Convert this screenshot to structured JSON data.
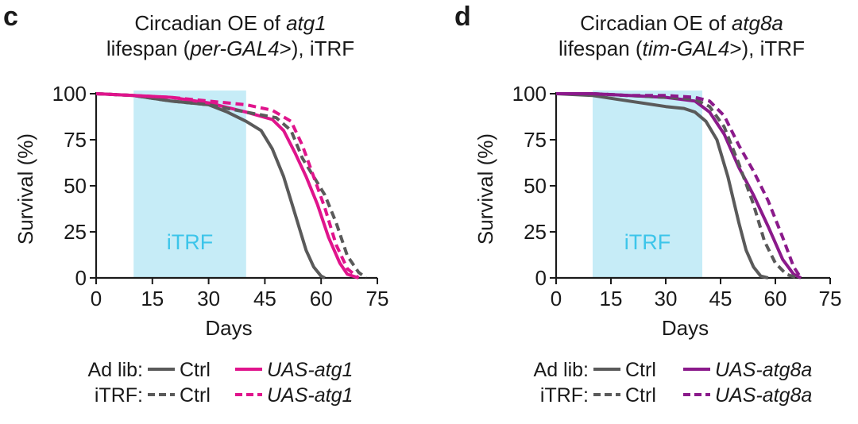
{
  "chart_data": [
    {
      "panel": "c",
      "type": "line",
      "title_line1_prefix": "Circadian OE of ",
      "title_line1_italic": "atg1",
      "title_line2_prefix": "lifespan (",
      "title_line2_italic": "per-GAL4",
      "title_line2_suffix": ">), iTRF",
      "xlabel": "Days",
      "ylabel": "Survival (%)",
      "xlim": [
        0,
        75
      ],
      "ylim": [
        0,
        100
      ],
      "xticks": [
        0,
        15,
        30,
        45,
        60,
        75
      ],
      "yticks": [
        0,
        25,
        50,
        75,
        100
      ],
      "shade": {
        "x0": 10,
        "x1": 40,
        "label": "iTRF"
      },
      "legend": {
        "row1_label": "Ad lib:",
        "row2_label": "iTRF:",
        "ctrl_label": "Ctrl",
        "uas_label": "UAS-atg1"
      },
      "series": [
        {
          "name": "Ad lib Ctrl",
          "color": "#5a5a5a",
          "dashed": false,
          "x": [
            0,
            10,
            20,
            30,
            35,
            40,
            44,
            47,
            50,
            53,
            56,
            58,
            60,
            61
          ],
          "y": [
            100,
            99,
            96,
            94,
            90,
            85,
            80,
            70,
            55,
            35,
            15,
            6,
            1,
            0
          ]
        },
        {
          "name": "Ad lib UAS-atg1",
          "color": "#e0148c",
          "dashed": false,
          "x": [
            0,
            10,
            20,
            30,
            40,
            47,
            50,
            53,
            56,
            59,
            62,
            65,
            67,
            70
          ],
          "y": [
            100,
            99,
            98,
            95,
            90,
            86,
            80,
            68,
            55,
            40,
            22,
            8,
            2,
            0
          ]
        },
        {
          "name": "iTRF Ctrl",
          "color": "#5a5a5a",
          "dashed": true,
          "x": [
            0,
            10,
            20,
            30,
            40,
            48,
            52,
            55,
            58,
            61,
            64,
            67,
            70,
            72
          ],
          "y": [
            100,
            99,
            96,
            94,
            90,
            87,
            80,
            65,
            55,
            45,
            30,
            12,
            3,
            0
          ]
        },
        {
          "name": "iTRF UAS-atg1",
          "color": "#e0148c",
          "dashed": true,
          "x": [
            0,
            10,
            20,
            30,
            40,
            47,
            52,
            55,
            58,
            61,
            64,
            67,
            70
          ],
          "y": [
            100,
            99,
            98,
            96,
            94,
            91,
            85,
            72,
            55,
            38,
            18,
            5,
            0
          ]
        }
      ]
    },
    {
      "panel": "d",
      "type": "line",
      "title_line1_prefix": "Circadian OE of ",
      "title_line1_italic": "atg8a",
      "title_line2_prefix": "lifespan (",
      "title_line2_italic": "tim-GAL4",
      "title_line2_suffix": ">), iTRF",
      "xlabel": "Days",
      "ylabel": "Survival (%)",
      "xlim": [
        0,
        75
      ],
      "ylim": [
        0,
        100
      ],
      "xticks": [
        0,
        15,
        30,
        45,
        60,
        75
      ],
      "yticks": [
        0,
        25,
        50,
        75,
        100
      ],
      "shade": {
        "x0": 10,
        "x1": 40,
        "label": "iTRF"
      },
      "legend": {
        "row1_label": "Ad lib:",
        "row2_label": "iTRF:",
        "ctrl_label": "Ctrl",
        "uas_label": "UAS-atg8a"
      },
      "series": [
        {
          "name": "Ad lib Ctrl",
          "color": "#5a5a5a",
          "dashed": false,
          "x": [
            0,
            10,
            20,
            30,
            35,
            38,
            41,
            44,
            47,
            50,
            52,
            54,
            56,
            58
          ],
          "y": [
            100,
            99,
            96,
            93,
            92,
            90,
            85,
            75,
            55,
            30,
            15,
            6,
            1,
            0
          ]
        },
        {
          "name": "Ad lib UAS-atg8a",
          "color": "#8b1a8b",
          "dashed": false,
          "x": [
            0,
            10,
            20,
            30,
            38,
            42,
            46,
            50,
            54,
            58,
            62,
            65,
            67
          ],
          "y": [
            100,
            100,
            99,
            98,
            96,
            90,
            78,
            60,
            45,
            28,
            10,
            2,
            0
          ]
        },
        {
          "name": "iTRF Ctrl",
          "color": "#5a5a5a",
          "dashed": true,
          "x": [
            0,
            10,
            20,
            30,
            38,
            42,
            46,
            50,
            54,
            57,
            60,
            63,
            66
          ],
          "y": [
            100,
            100,
            99,
            98,
            97,
            93,
            82,
            62,
            40,
            20,
            8,
            2,
            0
          ]
        },
        {
          "name": "iTRF UAS-atg8a",
          "color": "#8b1a8b",
          "dashed": true,
          "x": [
            0,
            10,
            20,
            30,
            38,
            42,
            46,
            50,
            54,
            58,
            62,
            65,
            67
          ],
          "y": [
            100,
            100,
            99,
            99,
            98,
            96,
            88,
            72,
            58,
            42,
            22,
            6,
            0
          ]
        }
      ]
    }
  ]
}
